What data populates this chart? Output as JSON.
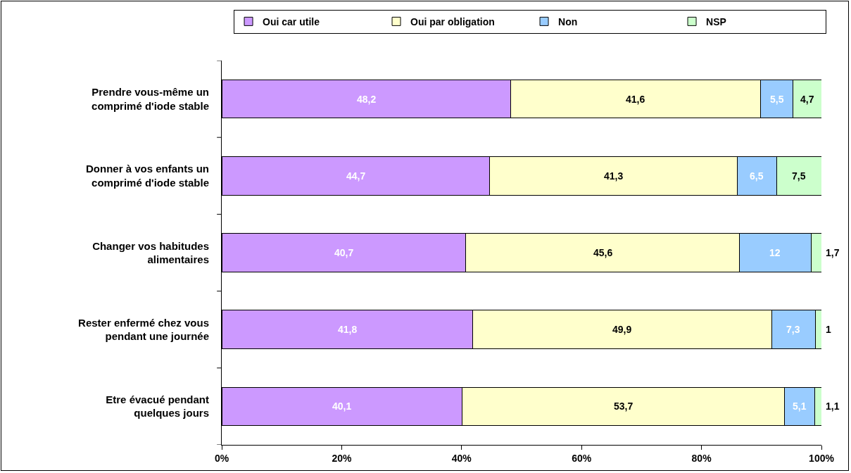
{
  "chart_data": {
    "type": "bar",
    "orientation": "horizontal",
    "stacked": true,
    "categories": [
      "Prendre vous-même un comprimé d'iode stable",
      "Donner à vos enfants un comprimé d'iode stable",
      "Changer vos habitudes alimentaires",
      "Rester enfermé chez vous pendant une journée",
      "Etre évacué pendant quelques jours"
    ],
    "series": [
      {
        "name": "Oui car utile",
        "color": "#cc99ff",
        "values": [
          48.2,
          44.7,
          40.7,
          41.8,
          40.1
        ],
        "value_labels": [
          "48,2",
          "44,7",
          "40,7",
          "41,8",
          "40,1"
        ]
      },
      {
        "name": "Oui par obligation",
        "color": "#ffffcc",
        "values": [
          41.6,
          41.3,
          45.6,
          49.9,
          53.7
        ],
        "value_labels": [
          "41,6",
          "41,3",
          "45,6",
          "49,9",
          "53,7"
        ]
      },
      {
        "name": "Non",
        "color": "#99ccff",
        "values": [
          5.5,
          6.5,
          12,
          7.3,
          5.1
        ],
        "value_labels": [
          "5,5",
          "6,5",
          "12",
          "7,3",
          "5,1"
        ]
      },
      {
        "name": "NSP",
        "color": "#ccffcc",
        "values": [
          4.7,
          7.5,
          1.7,
          1,
          1.1
        ],
        "value_labels": [
          "4,7",
          "7,5",
          "1,7",
          "1",
          "1,1"
        ]
      }
    ],
    "xlim": [
      0,
      100
    ],
    "xticks": [
      {
        "value": 0,
        "label": "0%"
      },
      {
        "value": 20,
        "label": "20%"
      },
      {
        "value": 40,
        "label": "40%"
      },
      {
        "value": 60,
        "label": "60%"
      },
      {
        "value": 80,
        "label": "80%"
      },
      {
        "value": 100,
        "label": "100%"
      }
    ],
    "grid": false,
    "legend": "top"
  }
}
